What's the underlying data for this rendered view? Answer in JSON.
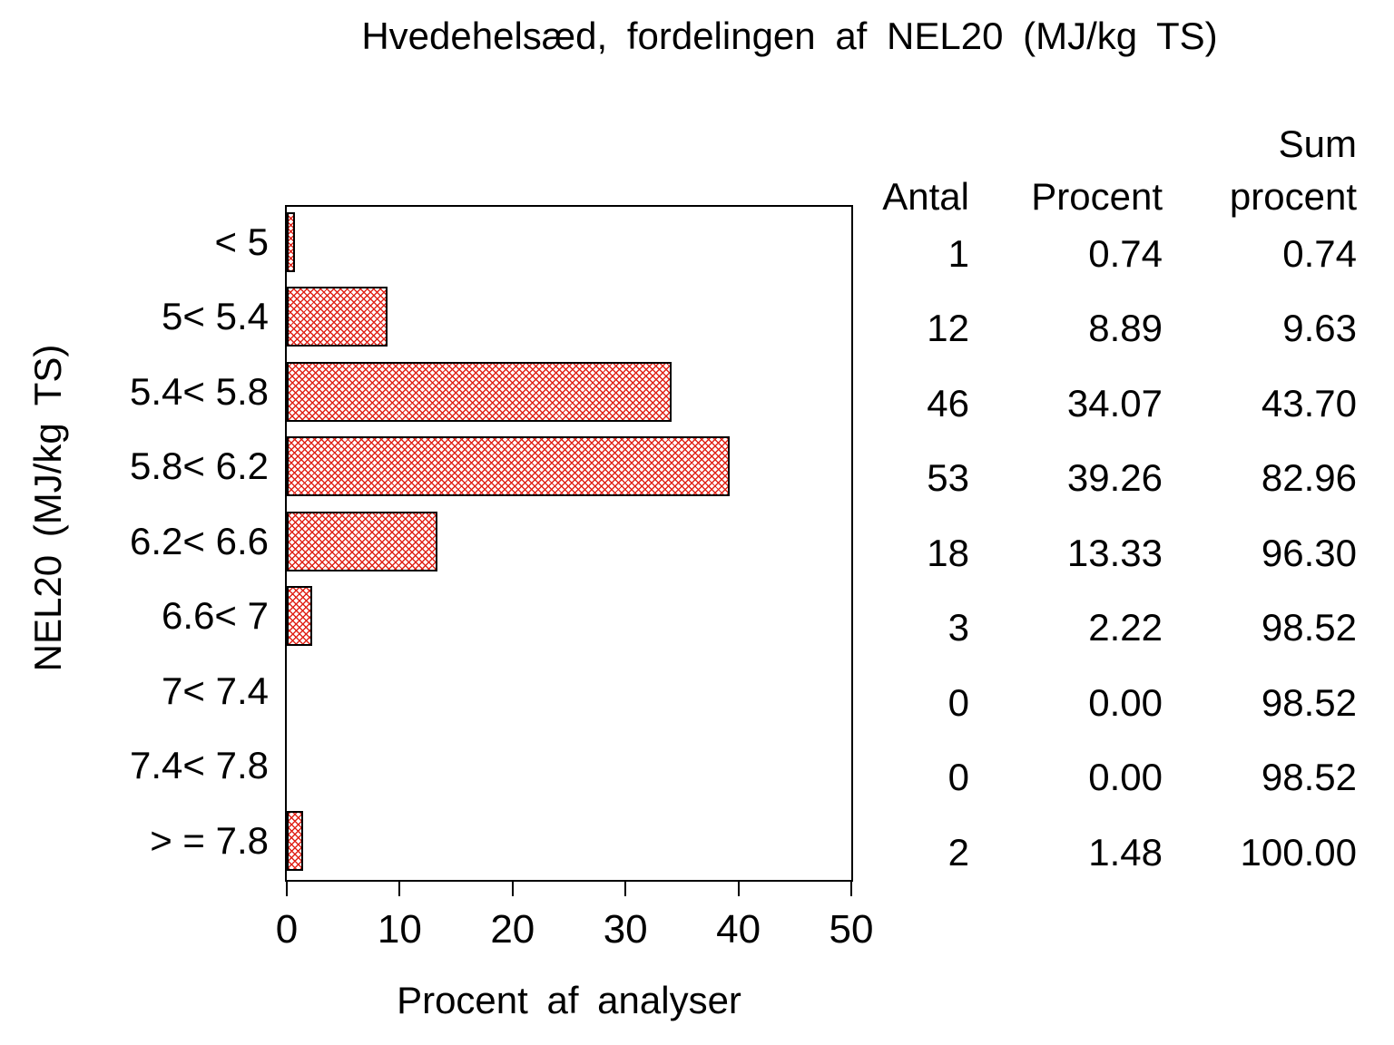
{
  "title": "Hvedehelsæd, fordelingen af NEL20 (MJ/kg TS)",
  "chart_data": {
    "type": "bar",
    "orientation": "horizontal",
    "title": "Hvedehelsæd, fordelingen af NEL20 (MJ/kg TS)",
    "xlabel": "Procent af analyser",
    "ylabel": "NEL20 (MJ/kg TS)",
    "categories": [
      "< 5",
      "5< 5.4",
      "5.4< 5.8",
      "5.8< 6.2",
      "6.2< 6.6",
      "6.6< 7",
      "7< 7.4",
      "7.4< 7.8",
      "> = 7.8"
    ],
    "values": [
      0.74,
      8.89,
      34.07,
      39.26,
      13.33,
      2.22,
      0.0,
      0.0,
      1.48
    ],
    "xticks": [
      "0",
      "10",
      "20",
      "30",
      "40",
      "50"
    ],
    "xtick_values": [
      0,
      10,
      20,
      30,
      40,
      50
    ],
    "xlim": [
      0,
      50
    ],
    "grid": "off",
    "legend": "none",
    "bar_fill_color": "#e02318",
    "bar_pattern": "crosshatch",
    "bar_border_color": "#000000",
    "frame_color": "#000000",
    "background_color": "#ffffff"
  },
  "table": {
    "headers": {
      "antal": "Antal",
      "procent": "Procent",
      "sum_line1": "Sum",
      "sum_line2": "procent"
    },
    "rows": [
      {
        "antal": "1",
        "procent": "0.74",
        "sum": "0.74"
      },
      {
        "antal": "12",
        "procent": "8.89",
        "sum": "9.63"
      },
      {
        "antal": "46",
        "procent": "34.07",
        "sum": "43.70"
      },
      {
        "antal": "53",
        "procent": "39.26",
        "sum": "82.96"
      },
      {
        "antal": "18",
        "procent": "13.33",
        "sum": "96.30"
      },
      {
        "antal": "3",
        "procent": "2.22",
        "sum": "98.52"
      },
      {
        "antal": "0",
        "procent": "0.00",
        "sum": "98.52"
      },
      {
        "antal": "0",
        "procent": "0.00",
        "sum": "98.52"
      },
      {
        "antal": "2",
        "procent": "1.48",
        "sum": "100.00"
      }
    ]
  }
}
